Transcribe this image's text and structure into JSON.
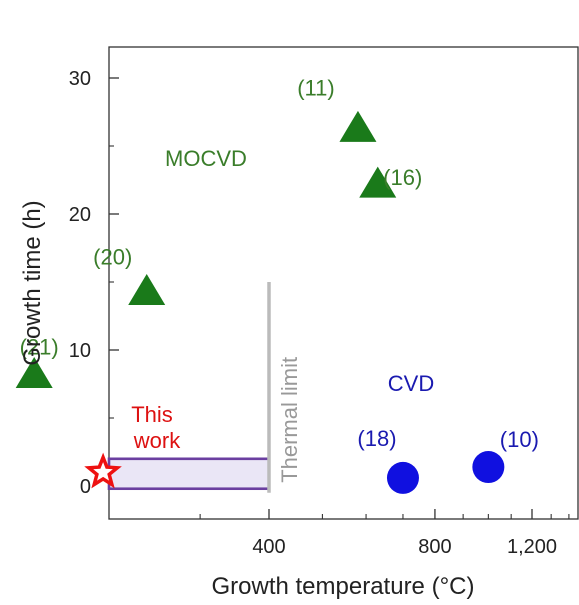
{
  "chart_data": {
    "type": "scatter",
    "xlabel": "Growth temperature (°C)",
    "ylabel": "Growth time (h)",
    "x_scale": "log",
    "xlim": [
      100,
      1500
    ],
    "ylim": [
      -2.5,
      32
    ],
    "x_ticks": [
      400,
      800,
      1200
    ],
    "x_tick_labels": [
      "400",
      "800",
      "1,200"
    ],
    "y_ticks": [
      0,
      10,
      20,
      30
    ],
    "y_tick_labels": [
      "0",
      "10",
      "20",
      "30"
    ],
    "grid": false,
    "series": [
      {
        "name": "MOCVD",
        "marker": "triangle",
        "color": "#1a7a1a",
        "label_color": "#3a7d2a",
        "points": [
          {
            "x": 580,
            "y": 26.3,
            "ref": "(11)"
          },
          {
            "x": 630,
            "y": 22.2,
            "ref": "(16)"
          },
          {
            "x": 240,
            "y": 14.3,
            "ref": "(20)"
          },
          {
            "x": 150,
            "y": 8.2,
            "ref": "(21)"
          }
        ]
      },
      {
        "name": "CVD",
        "marker": "circle",
        "color": "#1010e0",
        "label_color": "#1a1ab0",
        "points": [
          {
            "x": 700,
            "y": 0.3,
            "ref": "(18)"
          },
          {
            "x": 1000,
            "y": 1.1,
            "ref": "(10)"
          }
        ]
      },
      {
        "name": "This work",
        "marker": "star",
        "color": "#ee1111",
        "label_color": "#dd1111",
        "points": [
          {
            "x": 200,
            "y": 1.0
          }
        ]
      }
    ],
    "annotations": {
      "this_work_line1": "This",
      "this_work_line2": "work",
      "thermal_limit": "Thermal limit",
      "thermal_limit_x": 400,
      "thermal_limit_y_range": [
        -0.5,
        15
      ],
      "this_work_range": {
        "x": [
          100,
          400
        ],
        "y": [
          -0.2,
          2.0
        ],
        "fill": "#eae6f6",
        "stroke": "#6b3fa0"
      }
    }
  }
}
